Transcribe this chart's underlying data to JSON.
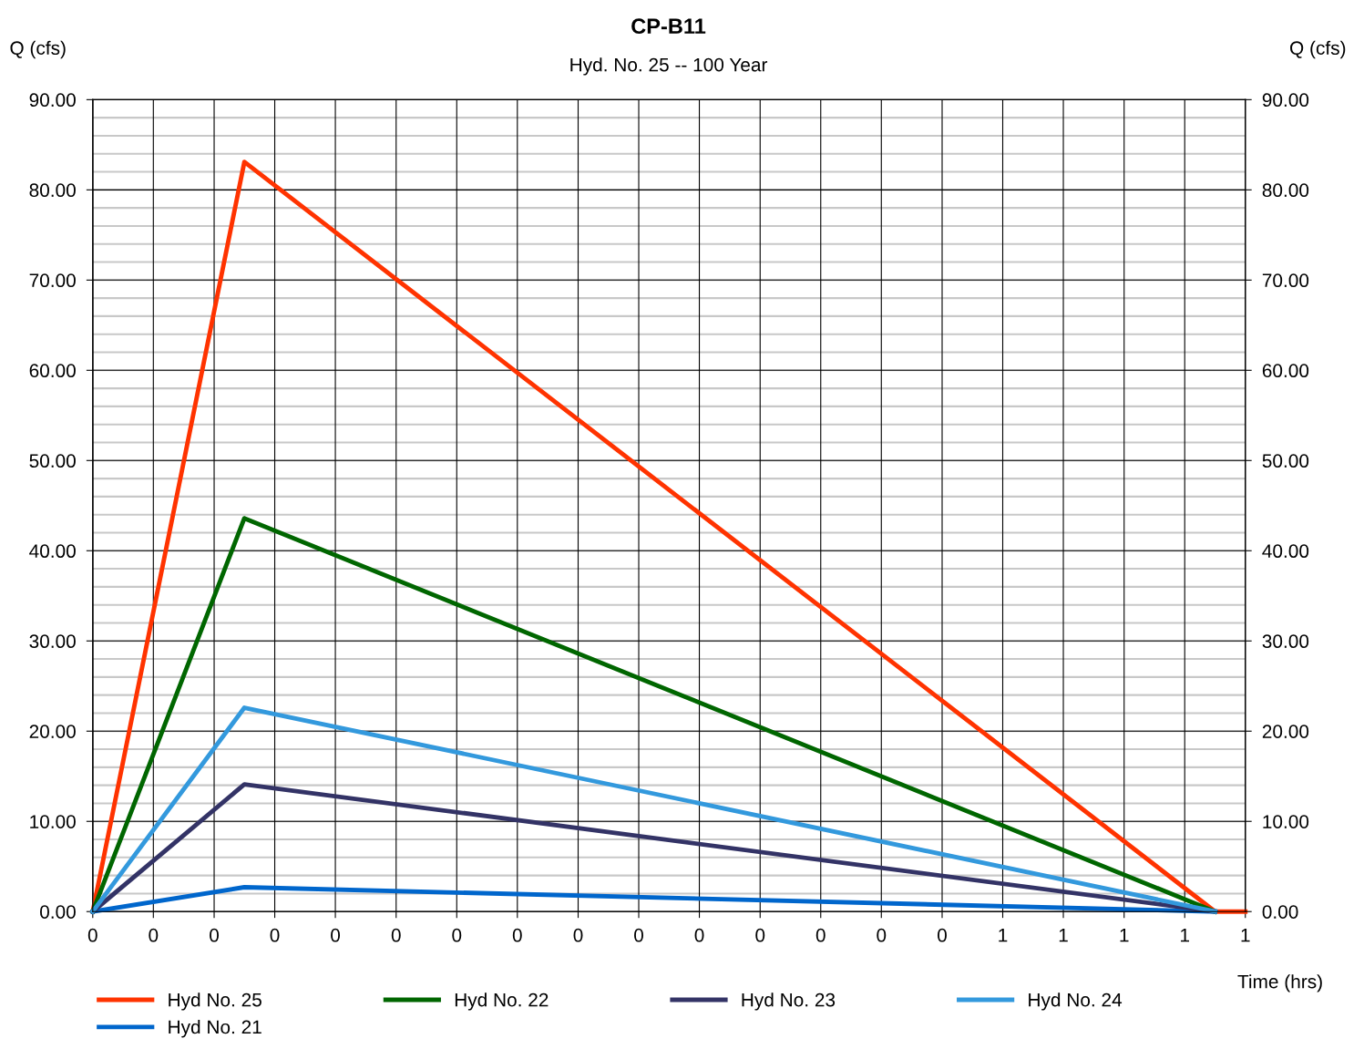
{
  "chart_data": {
    "type": "line",
    "title": "CP-B11",
    "subtitle": "Hyd. No. 25 -- 100 Year",
    "xlabel": "Time (hrs)",
    "ylabel": "Q (cfs)",
    "y2label": "Q (cfs)",
    "xlim": [
      0,
      0.6333
    ],
    "xticks": [
      {
        "value": 0,
        "label": "0"
      },
      {
        "value": 0.0333,
        "label": "0"
      },
      {
        "value": 0.0667,
        "label": "0"
      },
      {
        "value": 0.1,
        "label": "0"
      },
      {
        "value": 0.1333,
        "label": "0"
      },
      {
        "value": 0.1667,
        "label": "0"
      },
      {
        "value": 0.2,
        "label": "0"
      },
      {
        "value": 0.2333,
        "label": "0"
      },
      {
        "value": 0.2667,
        "label": "0"
      },
      {
        "value": 0.3,
        "label": "0"
      },
      {
        "value": 0.3333,
        "label": "0"
      },
      {
        "value": 0.3667,
        "label": "0"
      },
      {
        "value": 0.4,
        "label": "0"
      },
      {
        "value": 0.4333,
        "label": "0"
      },
      {
        "value": 0.4667,
        "label": "0"
      },
      {
        "value": 0.5,
        "label": "1"
      },
      {
        "value": 0.5333,
        "label": "1"
      },
      {
        "value": 0.5667,
        "label": "1"
      },
      {
        "value": 0.6,
        "label": "1"
      },
      {
        "value": 0.6333,
        "label": "1"
      }
    ],
    "ylim": [
      0,
      90
    ],
    "yticks": [
      {
        "value": 0,
        "label": "0.00"
      },
      {
        "value": 10,
        "label": "10.00"
      },
      {
        "value": 20,
        "label": "20.00"
      },
      {
        "value": 30,
        "label": "30.00"
      },
      {
        "value": 40,
        "label": "40.00"
      },
      {
        "value": 50,
        "label": "50.00"
      },
      {
        "value": 60,
        "label": "60.00"
      },
      {
        "value": 70,
        "label": "70.00"
      },
      {
        "value": 80,
        "label": "80.00"
      },
      {
        "value": 90,
        "label": "90.00"
      }
    ],
    "y2lim": [
      0,
      90
    ],
    "y2ticks": [
      {
        "value": 0,
        "label": "0.00"
      },
      {
        "value": 10,
        "label": "10.00"
      },
      {
        "value": 20,
        "label": "20.00"
      },
      {
        "value": 30,
        "label": "30.00"
      },
      {
        "value": 40,
        "label": "40.00"
      },
      {
        "value": 50,
        "label": "50.00"
      },
      {
        "value": 60,
        "label": "60.00"
      },
      {
        "value": 70,
        "label": "70.00"
      },
      {
        "value": 80,
        "label": "80.00"
      },
      {
        "value": 90,
        "label": "90.00"
      }
    ],
    "grid": true,
    "legend": "bottom",
    "marker": "none",
    "line_style": "solid",
    "series": [
      {
        "name": "Hyd No. 25",
        "color": "#ff3300",
        "x": [
          0,
          0.0833,
          0.6167,
          0.6333
        ],
        "values": [
          0,
          83.1,
          0,
          0
        ]
      },
      {
        "name": "Hyd No. 21",
        "color": "#0066cc",
        "x": [
          0,
          0.0833,
          0.6167
        ],
        "values": [
          0,
          2.7,
          0
        ]
      },
      {
        "name": "Hyd No. 22",
        "color": "#006600",
        "x": [
          0,
          0.0833,
          0.6167
        ],
        "values": [
          0,
          43.6,
          0
        ]
      },
      {
        "name": "Hyd No. 23",
        "color": "#333366",
        "x": [
          0,
          0.0833,
          0.6167
        ],
        "values": [
          0,
          14.1,
          0
        ]
      },
      {
        "name": "Hyd No. 24",
        "color": "#3399dd",
        "x": [
          0,
          0.0833,
          0.6167
        ],
        "values": [
          0,
          22.6,
          0
        ]
      }
    ]
  }
}
